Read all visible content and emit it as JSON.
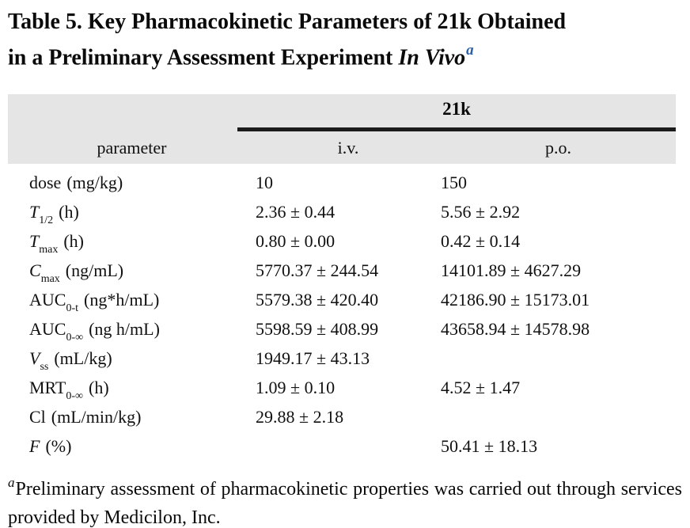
{
  "title": {
    "line1": "Table 5. Key Pharmacokinetic Parameters of 21k Obtained",
    "line2_prefix": "in a Preliminary Assessment Experiment ",
    "line2_emphasis": "In Vivo",
    "footnote_marker": "a"
  },
  "table": {
    "group_header": "21k",
    "column_headers": {
      "parameter": "parameter",
      "iv": "i.v.",
      "po": "p.o."
    },
    "rows": [
      {
        "symbol": "dose",
        "sub": "",
        "unit": "(mg/kg)",
        "iv": "10",
        "po": "150"
      },
      {
        "symbol": "T",
        "sub": "1/2",
        "unit": "(h)",
        "iv": "2.36 ± 0.44",
        "po": "5.56 ± 2.92"
      },
      {
        "symbol": "T",
        "sub": "max",
        "unit": "(h)",
        "iv": "0.80 ± 0.00",
        "po": "0.42 ± 0.14"
      },
      {
        "symbol": "C",
        "sub": "max",
        "unit": "(ng/mL)",
        "iv": "5770.37 ± 244.54",
        "po": "14101.89 ± 4627.29"
      },
      {
        "symbol": "AUC",
        "sub": "0-t",
        "unit": "(ng*h/mL)",
        "iv": "5579.38 ± 420.40",
        "po": "42186.90 ± 15173.01"
      },
      {
        "symbol": "AUC",
        "sub": "0-∞",
        "unit": "(ng h/mL)",
        "iv": "5598.59 ± 408.99",
        "po": "43658.94 ± 14578.98"
      },
      {
        "symbol": "V",
        "sub": "ss",
        "unit": "(mL/kg)",
        "iv": "1949.17 ± 43.13",
        "po": ""
      },
      {
        "symbol": "MRT",
        "sub": "0-∞",
        "unit": "(h)",
        "iv": "1.09 ± 0.10",
        "po": "4.52 ± 1.47"
      },
      {
        "symbol": "Cl",
        "sub": "",
        "unit": "(mL/min/kg)",
        "iv": "29.88 ± 2.18",
        "po": ""
      },
      {
        "symbol": "F",
        "sub": "",
        "unit": "(%)",
        "iv": "",
        "po": "50.41 ± 18.13"
      }
    ]
  },
  "footnote": {
    "marker": "a",
    "text": "Preliminary assessment of pharmacokinetic properties was carried out through services provided by Medicilon, Inc."
  },
  "colors": {
    "header_bg": "#e5e5e5",
    "rule": "#1b1b1b",
    "title_marker_blue": "#2c5faa",
    "text": "#111111"
  }
}
